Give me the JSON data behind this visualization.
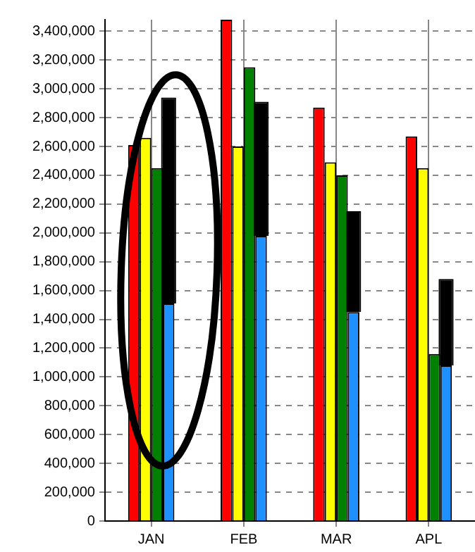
{
  "chart_data": {
    "type": "bar",
    "categories": [
      "JAN",
      "FEB",
      "MAR",
      "APL"
    ],
    "series": [
      {
        "color": "#ff0000",
        "values": [
          2610000,
          3480000,
          2870000,
          2670000
        ]
      },
      {
        "color": "#ffff00",
        "values": [
          2660000,
          2600000,
          2490000,
          2450000
        ]
      },
      {
        "color": "#008000",
        "values": [
          2450000,
          3150000,
          2400000,
          1160000
        ]
      },
      {
        "color": "#1e90ff",
        "values": [
          1510000,
          1980000,
          1450000,
          1080000
        ]
      },
      {
        "color": "#000000",
        "base": [
          1510000,
          1980000,
          1450000,
          1080000
        ],
        "values": [
          1430000,
          930000,
          700000,
          600000
        ]
      }
    ],
    "ylim": [
      0,
      3480000
    ],
    "yticks": [
      0,
      {
        "value": 200000,
        "label": "200,000"
      },
      {
        "value": 400000,
        "label": "400,000"
      },
      {
        "value": 600000,
        "label": "600,000"
      },
      {
        "value": 800000,
        "label": "800,000"
      },
      {
        "value": 1000000,
        "label": "1,000,000"
      },
      {
        "value": 1200000,
        "label": "1,200,000"
      },
      {
        "value": 1400000,
        "label": "1,400,000"
      },
      {
        "value": 1600000,
        "label": "1,600,000"
      },
      {
        "value": 1800000,
        "label": "1,800,000"
      },
      {
        "value": 2000000,
        "label": "2,000,000"
      },
      {
        "value": 2200000,
        "label": "2,200,000"
      },
      {
        "value": 2400000,
        "label": "2,400,000"
      },
      {
        "value": 2600000,
        "label": "2,600,000"
      },
      {
        "value": 2800000,
        "label": "2,800,000"
      },
      {
        "value": 3000000,
        "label": "3,000,000"
      },
      {
        "value": 3200000,
        "label": "3,200,000"
      },
      {
        "value": 3400000,
        "label": "3,400,000"
      }
    ],
    "grid": true,
    "legend": false
  }
}
